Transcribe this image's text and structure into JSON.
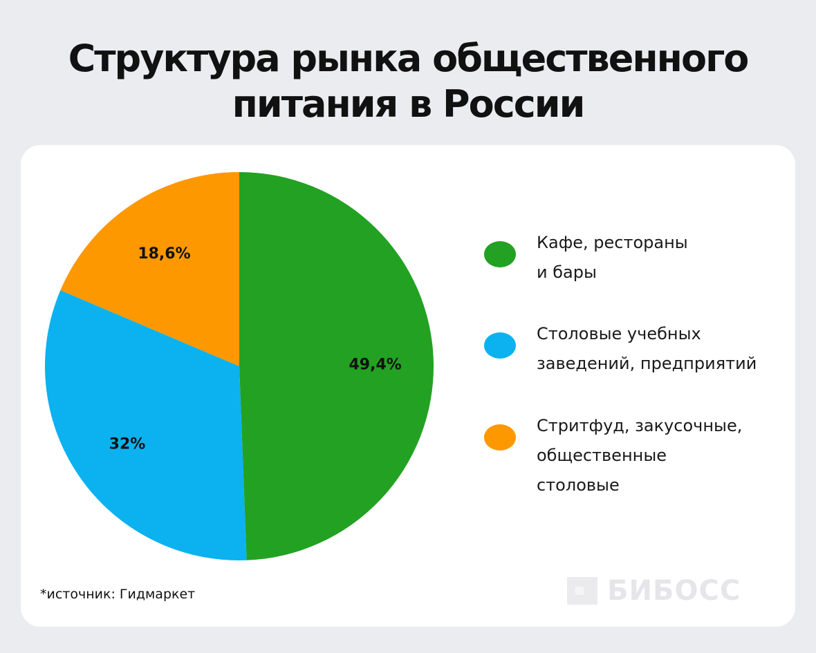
{
  "title": {
    "line1": "Структура рынка общественного",
    "line2": "питания в России"
  },
  "chart_data": {
    "type": "pie",
    "title": "Структура рынка общественного питания в России",
    "slices": [
      {
        "label": "Кафе, рестораны и бары",
        "value": 49.4,
        "display": "49,4%",
        "color": "#23a123"
      },
      {
        "label": "Столовые учебных заведений, предприятий",
        "value": 32,
        "display": "32%",
        "color": "#0bb2ef"
      },
      {
        "label": "Стритфуд, закусочные, общественные столовые",
        "value": 18.6,
        "display": "18,6%",
        "color": "#fe9801"
      }
    ],
    "start": "12 o'clock",
    "direction": "clockwise",
    "legend_placement": "right"
  },
  "legend": [
    {
      "lines": [
        "Кафе, рестораны",
        "и бары"
      ],
      "color": "#23a123"
    },
    {
      "lines": [
        "Столовые учебных",
        "заведений, предприятий"
      ],
      "color": "#0bb2ef"
    },
    {
      "lines": [
        "Стритфуд, закусочные,",
        "общественные",
        "столовые"
      ],
      "color": "#fe9801"
    }
  ],
  "source": "*источник: Гидмаркет",
  "logo": {
    "text": "БИБОСС",
    "icon": "square-logo-icon"
  }
}
